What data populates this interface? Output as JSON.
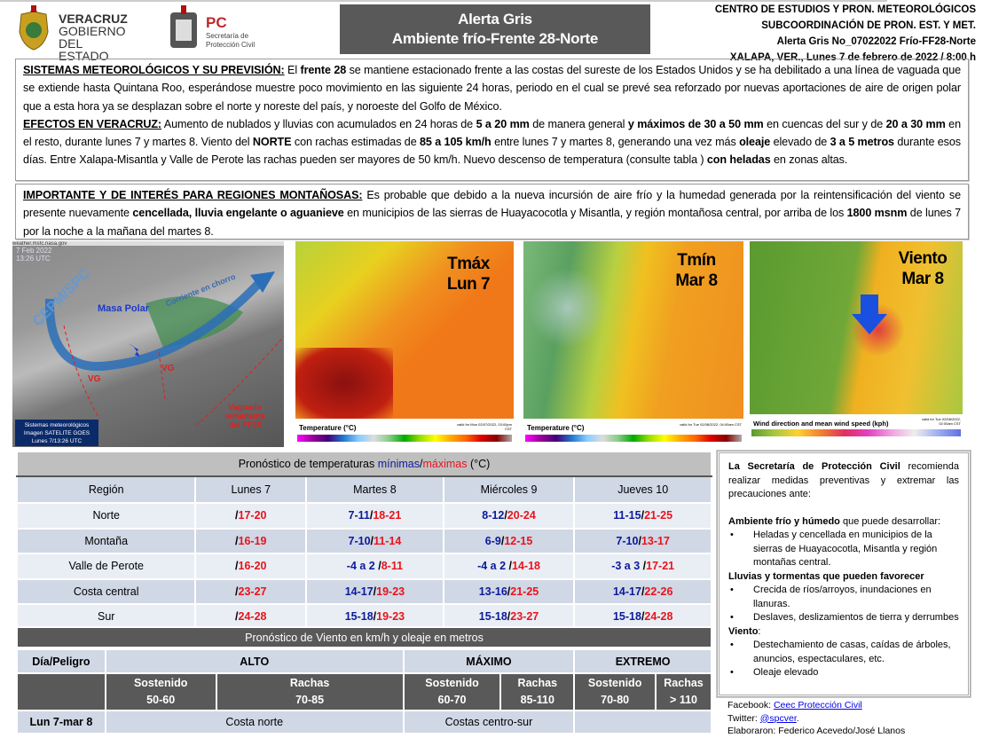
{
  "header": {
    "veracruz_logo": [
      "VERACRUZ",
      "GOBIERNO",
      "DEL ESTADO"
    ],
    "pc_logo": {
      "abbr": "PC",
      "line1": "Secretaría de",
      "line2": "Protección Civil"
    },
    "title_line1": "Alerta Gris",
    "title_line2": "Ambiente frío-Frente 28-Norte",
    "right": [
      "CENTRO DE ESTUDIOS Y PRON. METEOROLÓGICOS",
      "SUBCOORDINACIÓN DE PRON.  EST. Y MET.",
      "Alerta Gris No_07022022 Frío-FF28-Norte",
      "XALAPA, VER., Lunes 7 de febrero de 2022 / 8:00 h"
    ]
  },
  "box1": [
    [
      {
        "t": "SISTEMAS METEOROLÓGICOS Y SU PREVISIÓN:",
        "b": 1,
        "u": 1
      },
      {
        "t": " El "
      },
      {
        "t": "frente 28",
        "b": 1
      },
      {
        "t": " se mantiene estacionado frente a las costas del sureste de los Estados Unidos y se ha debilitado a una línea de vaguada que se extiende hasta Quintana Roo, esperándose muestre poco movimiento en las siguiente 24 horas, periodo en el cual se prevé sea reforzado por nuevas aportaciones de aire de origen polar que a esta hora ya se desplazan sobre el norte y noreste del país, y noroeste del Golfo de México."
      }
    ],
    [
      {
        "t": "EFECTOS EN VERACRUZ:",
        "b": 1,
        "u": 1
      },
      {
        "t": "  Aumento de nublados y lluvias con acumulados en 24 horas de "
      },
      {
        "t": "5 a 20 mm",
        "b": 1
      },
      {
        "t": " de manera general "
      },
      {
        "t": "y máximos de 30 a 50 mm",
        "b": 1
      },
      {
        "t": " en cuencas del sur y de "
      },
      {
        "t": "20 a 30 mm",
        "b": 1
      },
      {
        "t": " en el resto, durante lunes 7 y martes 8. Viento del "
      },
      {
        "t": "NORTE",
        "b": 1
      },
      {
        "t": " con rachas estimadas de "
      },
      {
        "t": "85 a 105 km/h",
        "b": 1
      },
      {
        "t": " entre lunes 7 y martes 8, generando una vez más "
      },
      {
        "t": "oleaje",
        "b": 1
      },
      {
        "t": " elevado de "
      },
      {
        "t": "3 a 5 metros",
        "b": 1
      },
      {
        "t": " durante esos días. Entre Xalapa-Misantla y Valle de Perote las rachas pueden ser mayores de 50 km/h. Nuevo descenso de temperatura (consulte tabla ) "
      },
      {
        "t": "con heladas",
        "b": 1
      },
      {
        "t": " en zonas altas."
      }
    ]
  ],
  "box2": [
    [
      {
        "t": "IMPORTANTE Y DE INTERÉS PARA REGIONES MONTAÑOSAS:",
        "b": 1,
        "u": 1
      },
      {
        "t": " Es probable que debido a la nueva incursión de aire frío y la humedad generada por la reintensificación del viento se presente nuevamente "
      },
      {
        "t": "cencellada, lluvia engelante o aguanieve",
        "b": 1
      },
      {
        "t": "  en  municipios de las sierras de Huayacocotla y Misantla, y región montañosa central, por arriba de los "
      },
      {
        "t": "1800 msnm",
        "b": 1
      },
      {
        "t": " de lunes 7 por la noche a la mañana del martes 8."
      }
    ]
  ],
  "satellite": {
    "source": "weather.msfc.nasa.gov",
    "timestamp": [
      "7 Feb 2022",
      "13:26 UTC"
    ],
    "watermark": "CEPM/SPC",
    "labels": {
      "masa_polar": "Masa Polar",
      "corriente": "Corriente en chorro",
      "vg": "VG",
      "vaguada": "Vaguada remanente del FF28"
    },
    "caption": [
      "Sistemas meteorológicos",
      "Imagen SATELITE GOES",
      "Lunes 7/13:26 UTC"
    ]
  },
  "maps": [
    {
      "label1": "Tmáx",
      "label2": "Lun 7",
      "legend": "Temperature (°C)",
      "valid": "valid for Mon 02/07/2022, 03:00pm CST"
    },
    {
      "label1": "Tmín",
      "label2": "Mar 8",
      "legend": "Temperature (°C)",
      "valid": "valid for Tue 02/08/2022, 04:00am CST"
    },
    {
      "label1": "Viento",
      "label2": "Mar 8",
      "legend": "Wind direction and mean wind speed (kph)",
      "valid": "valid for Tue 02/08/2022, 02:00am CST"
    }
  ],
  "temp_table": {
    "title_prefix": "Pronóstico de temperaturas ",
    "title_min": "mínimas",
    "title_sep": "/",
    "title_max": "máximas",
    "title_suffix": " (°C)",
    "headers": [
      "Región",
      "Lunes 7",
      "Martes 8",
      "Miércoles 9",
      "Jueves 10"
    ],
    "rows": [
      {
        "region": "Norte",
        "vals": [
          [
            "",
            "17-20"
          ],
          [
            "7-11",
            "18-21"
          ],
          [
            "8-12",
            "20-24"
          ],
          [
            "11-15",
            "21-25"
          ]
        ]
      },
      {
        "region": "Montaña",
        "vals": [
          [
            "",
            "16-19"
          ],
          [
            "7-10",
            "11-14"
          ],
          [
            "6-9",
            "12-15"
          ],
          [
            "7-10",
            "13-17"
          ]
        ]
      },
      {
        "region": "Valle de Perote",
        "vals": [
          [
            "",
            "16-20"
          ],
          [
            "-4 a 2 ",
            "8-11"
          ],
          [
            "-4 a 2 ",
            "14-18"
          ],
          [
            "-3 a 3 ",
            "17-21"
          ]
        ]
      },
      {
        "region": "Costa central",
        "vals": [
          [
            "",
            "23-27"
          ],
          [
            "14-17",
            "19-23"
          ],
          [
            "13-16",
            "21-25"
          ],
          [
            "14-17",
            "22-26"
          ]
        ]
      },
      {
        "region": "Sur",
        "vals": [
          [
            "",
            "24-28"
          ],
          [
            "15-18",
            "19-23"
          ],
          [
            "15-18",
            "23-27"
          ],
          [
            "15-18",
            "24-28"
          ]
        ]
      }
    ]
  },
  "wind_table": {
    "title": "Pronóstico de Viento en km/h y oleaje en metros",
    "dia": "Día/Peligro",
    "alto": "ALTO",
    "maximo": "MÁXIMO",
    "extremo": "EXTREMO",
    "sub": [
      [
        "Sostenido",
        "50-60"
      ],
      [
        "Rachas",
        "70-85"
      ],
      [
        "Sostenido",
        "60-70"
      ],
      [
        "Rachas",
        "85-110"
      ],
      [
        "Sostenido",
        "70-80"
      ],
      [
        "Rachas",
        "> 110"
      ]
    ],
    "row": {
      "day": "Lun 7-mar 8",
      "alto": "Costa norte",
      "maximo": "Costas centro-sur",
      "extremo": ""
    }
  },
  "side": {
    "intro_bold": "La Secretaría de Protección Civil",
    "intro": " recomienda realizar medidas preventivas y extremar las precauciones ante:",
    "s1_bold": "Ambiente frío y húmedo",
    "s1": " que puede desarrollar:",
    "s1_items": [
      "Heladas y cencellada en municipios de la sierras de Huayacocotla, Misantla y región montañas central."
    ],
    "s2_bold": "Lluvias y tormentas que pueden favorecer",
    "s2_items": [
      "Crecida de ríos/arroyos, inundaciones en llanuras.",
      "Deslaves, deslizamientos de tierra y derrumbes"
    ],
    "s3_bold": "Viento",
    "s3": ":",
    "s3_items": [
      "Destechamiento de casas, caídas de árboles, anuncios, espectaculares, etc.",
      "Oleaje elevado"
    ]
  },
  "footer": {
    "fb_label": "Facebook: ",
    "fb_link": "Ceec Protección Civil",
    "tw_label": "Twitter: ",
    "tw_link": "@spcver",
    "tw_end": ".",
    "credits": "Elaboraron: Federico Acevedo/José Llanos"
  },
  "colors": {
    "title_bg": "#595959",
    "table_header": "#bfbfbf",
    "row_dark": "#d0d7e5",
    "row_light": "#e9edf4",
    "min": "#0a1a9a",
    "max": "#e8141c"
  }
}
